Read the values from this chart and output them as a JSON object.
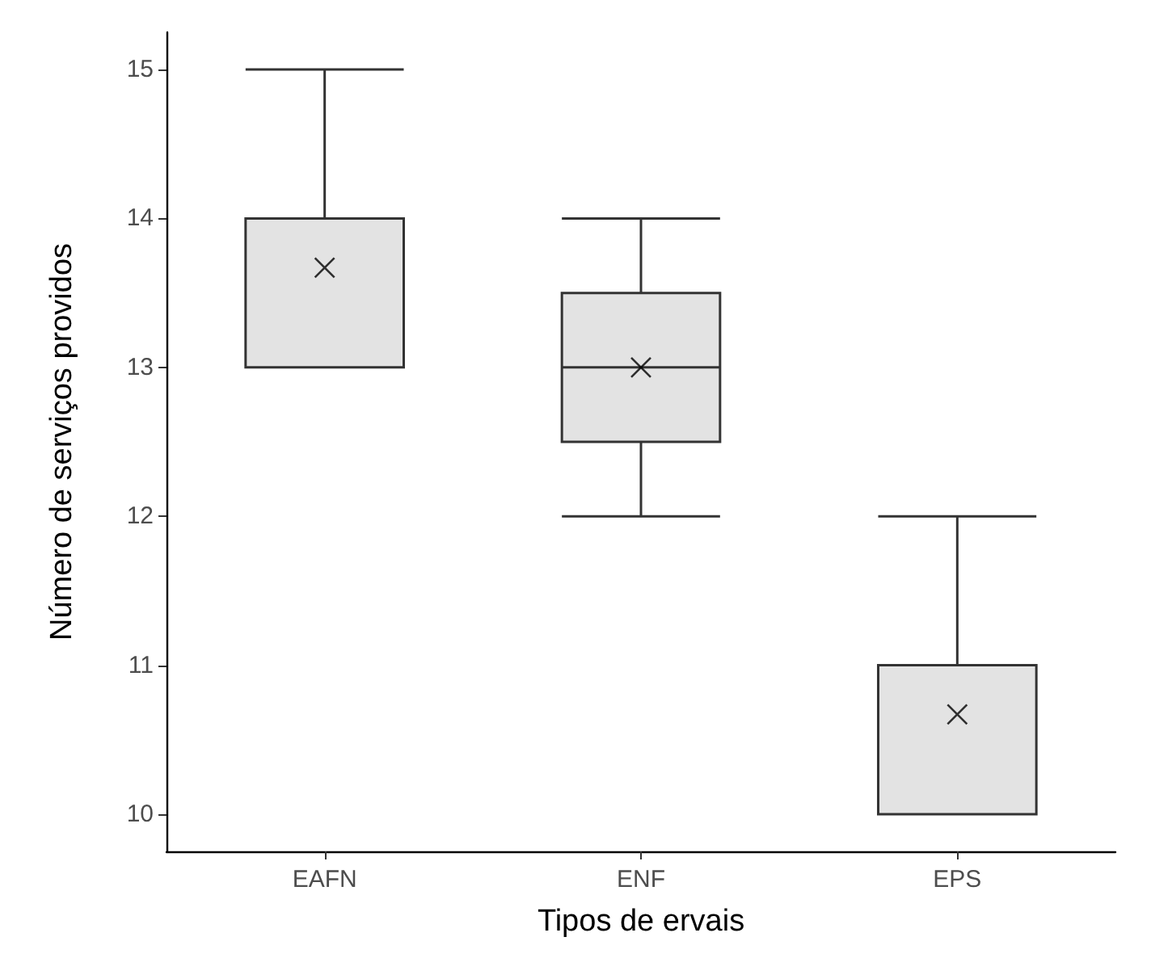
{
  "chart_data": {
    "type": "box",
    "xlabel": "Tipos de ervais",
    "ylabel": "Número de serviços providos",
    "categories": [
      "EAFN",
      "ENF",
      "EPS"
    ],
    "boxes": [
      {
        "low": 13,
        "q1": 13,
        "median": 14,
        "q3": 14,
        "high": 15,
        "mean": 13.67
      },
      {
        "low": 12,
        "q1": 12.5,
        "median": 13,
        "q3": 13.5,
        "high": 14,
        "mean": 13
      },
      {
        "low": 10,
        "q1": 10,
        "median": 10,
        "q3": 11,
        "high": 12,
        "mean": 10.67
      }
    ],
    "color": "#e3e3e3",
    "ylim": [
      9.75,
      15.25
    ],
    "yticks": [
      10,
      11,
      12,
      13,
      14,
      15
    ],
    "grid": false,
    "marker": "cross"
  }
}
